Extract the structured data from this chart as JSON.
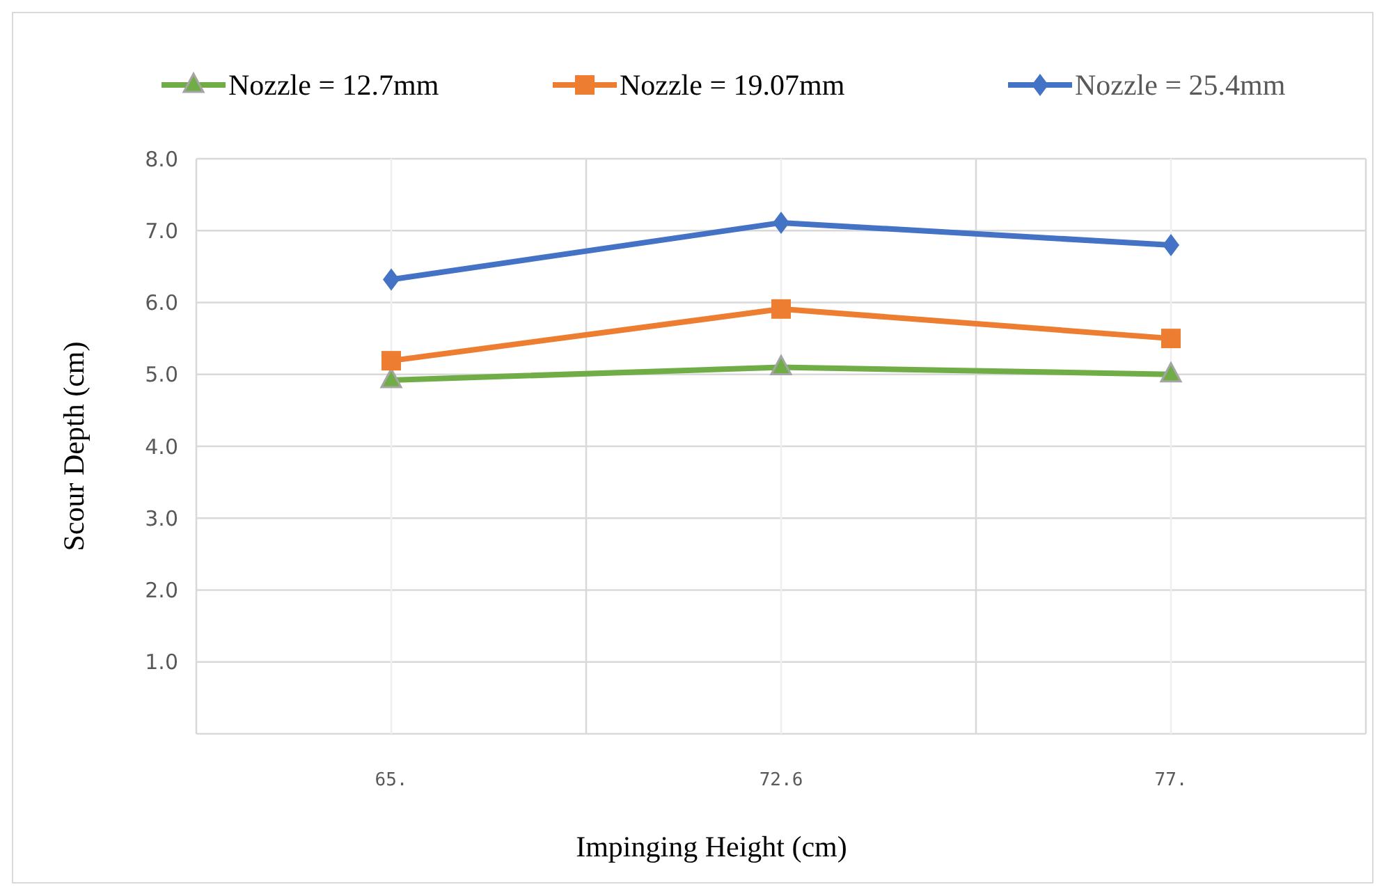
{
  "chart_data": {
    "type": "line",
    "xlabel": "Impinging Height (cm)",
    "ylabel": "Scour Depth (cm)",
    "categories": [
      "65.",
      "72.6",
      "77."
    ],
    "series": [
      {
        "name": "Nozzle = 12.7mm",
        "color": "#70ad47",
        "marker": "triangle",
        "values": [
          4.92,
          5.1,
          5.0
        ]
      },
      {
        "name": "Nozzle = 19.07mm",
        "color": "#ed7d31",
        "marker": "square",
        "values": [
          5.19,
          5.91,
          5.5
        ]
      },
      {
        "name": "Nozzle = 25.4mm",
        "color": "#4472c4",
        "marker": "diamond",
        "values": [
          6.32,
          7.11,
          6.8
        ]
      }
    ],
    "ylim": [
      0,
      8
    ],
    "yticks": [
      {
        "value": 0,
        "label": null
      },
      {
        "value": 1,
        "label": "1.0"
      },
      {
        "value": 2,
        "label": "2.0"
      },
      {
        "value": 3,
        "label": "3.0"
      },
      {
        "value": 4,
        "label": "4.0"
      },
      {
        "value": 5,
        "label": "5.0"
      },
      {
        "value": 6,
        "label": "6.0"
      },
      {
        "value": 7,
        "label": "7.0"
      },
      {
        "value": 8,
        "label": "8.0"
      }
    ],
    "grid": true,
    "legend": "top",
    "line_style": "solid"
  }
}
